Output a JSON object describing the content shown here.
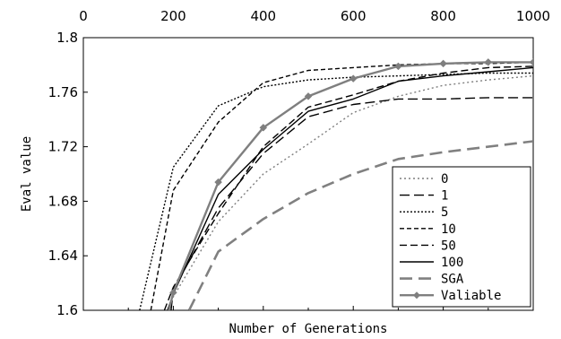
{
  "chart_data": {
    "type": "line",
    "xlabel": "Number of Generations",
    "ylabel": "Eval value",
    "xlim": [
      0,
      1000
    ],
    "ylim": [
      1.6,
      1.8
    ],
    "x_ticks": [
      "0",
      "200",
      "400",
      "600",
      "800",
      "1000"
    ],
    "y_ticks": [
      "1.6",
      "1.64",
      "1.68",
      "1.72",
      "1.76",
      "1.8"
    ],
    "x_tick_position": "top",
    "grid": false,
    "legend_position": "bottom-right",
    "series": [
      {
        "name": "0",
        "color": "#7f7f7f",
        "dash": "dotted",
        "x": [
          190,
          200,
          300,
          400,
          500,
          600,
          700,
          800,
          900,
          1000
        ],
        "y": [
          1.6,
          1.61,
          1.665,
          1.7,
          1.722,
          1.745,
          1.757,
          1.765,
          1.769,
          1.772
        ]
      },
      {
        "name": "1",
        "color": "#000000",
        "dash": "longdash",
        "x": [
          195,
          200,
          300,
          400,
          500,
          600,
          700,
          800,
          900,
          1000
        ],
        "y": [
          1.6,
          1.615,
          1.675,
          1.715,
          1.742,
          1.751,
          1.755,
          1.755,
          1.756,
          1.756
        ]
      },
      {
        "name": "5",
        "color": "#000000",
        "dash": "densedot",
        "x": [
          125,
          200,
          300,
          400,
          500,
          600,
          700,
          800,
          900,
          1000
        ],
        "y": [
          1.6,
          1.705,
          1.75,
          1.764,
          1.769,
          1.771,
          1.772,
          1.773,
          1.774,
          1.774
        ]
      },
      {
        "name": "10",
        "color": "#000000",
        "dash": "shortdash",
        "x": [
          150,
          200,
          300,
          400,
          500,
          600,
          700,
          800,
          900,
          1000
        ],
        "y": [
          1.6,
          1.688,
          1.738,
          1.767,
          1.776,
          1.778,
          1.78,
          1.781,
          1.781,
          1.782
        ]
      },
      {
        "name": "50",
        "color": "#000000",
        "dash": "dash",
        "x": [
          180,
          200,
          300,
          400,
          500,
          600,
          700,
          800,
          900,
          1000
        ],
        "y": [
          1.6,
          1.617,
          1.671,
          1.72,
          1.749,
          1.758,
          1.768,
          1.774,
          1.778,
          1.779
        ]
      },
      {
        "name": "100",
        "color": "#000000",
        "dash": "solid",
        "x": [
          187,
          200,
          300,
          400,
          500,
          600,
          700,
          800,
          900,
          1000
        ],
        "y": [
          1.6,
          1.612,
          1.685,
          1.718,
          1.746,
          1.755,
          1.768,
          1.772,
          1.775,
          1.778
        ]
      },
      {
        "name": "SGA",
        "color": "#808080",
        "dash": "longdash-thick",
        "x": [
          235,
          300,
          400,
          500,
          600,
          700,
          800,
          900,
          1000
        ],
        "y": [
          1.6,
          1.643,
          1.667,
          1.686,
          1.7,
          1.711,
          1.716,
          1.72,
          1.724
        ]
      },
      {
        "name": "Valiable",
        "color": "#7f7f7f",
        "dash": "solid-marker",
        "x": [
          190,
          200,
          300,
          400,
          500,
          600,
          700,
          800,
          900,
          1000
        ],
        "y": [
          1.6,
          1.613,
          1.694,
          1.734,
          1.757,
          1.77,
          1.779,
          1.781,
          1.782,
          1.782
        ]
      }
    ]
  }
}
